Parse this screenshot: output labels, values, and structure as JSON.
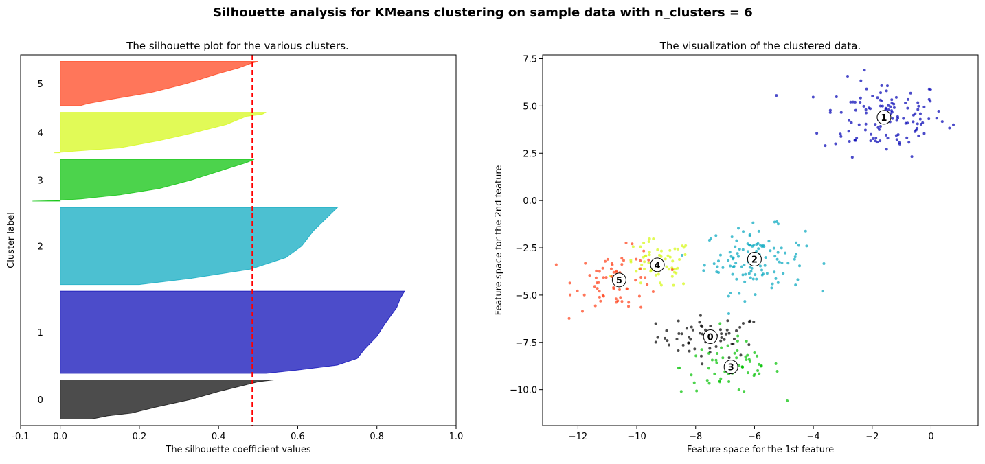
{
  "figure": {
    "suptitle": "Silhouette analysis for KMeans clustering on sample data with n_clusters = 6"
  },
  "chart_data": [
    {
      "type": "area",
      "subtype": "silhouette",
      "title": "The silhouette plot for the various clusters.",
      "xlabel": "The silhouette coefficient values",
      "ylabel": "Cluster label",
      "xlim": [
        -0.1,
        1.0
      ],
      "xticks": [
        "-0.1",
        "0.0",
        "0.2",
        "0.4",
        "0.6",
        "0.8",
        "1.0"
      ],
      "yticks": "none",
      "grid": false,
      "average_silhouette": 0.485,
      "average_line_color": "#ff0000",
      "clusters": [
        {
          "label": "0",
          "size": 60,
          "color": "#000000",
          "profile": [
            [
              0,
              0.54
            ],
            [
              0.05,
              0.5
            ],
            [
              0.15,
              0.46
            ],
            [
              0.3,
              0.4
            ],
            [
              0.5,
              0.33
            ],
            [
              0.7,
              0.24
            ],
            [
              0.85,
              0.18
            ],
            [
              0.92,
              0.12
            ],
            [
              1,
              0.08
            ]
          ]
        },
        {
          "label": "1",
          "size": 126,
          "color": "#0000b4",
          "profile": [
            [
              0,
              0.87
            ],
            [
              0.08,
              0.86
            ],
            [
              0.2,
              0.85
            ],
            [
              0.4,
              0.82
            ],
            [
              0.55,
              0.8
            ],
            [
              0.7,
              0.77
            ],
            [
              0.82,
              0.75
            ],
            [
              0.9,
              0.7
            ],
            [
              0.96,
              0.6
            ],
            [
              1,
              0.52
            ]
          ]
        },
        {
          "label": "2",
          "size": 118,
          "color": "#00a5bd",
          "profile": [
            [
              0,
              0.7
            ],
            [
              0.05,
              0.69
            ],
            [
              0.15,
              0.67
            ],
            [
              0.3,
              0.64
            ],
            [
              0.5,
              0.61
            ],
            [
              0.65,
              0.57
            ],
            [
              0.8,
              0.48
            ],
            [
              0.92,
              0.33
            ],
            [
              1,
              0.2
            ]
          ]
        },
        {
          "label": "3",
          "size": 64,
          "color": "#00c000",
          "profile": [
            [
              0,
              0.49
            ],
            [
              0.08,
              0.47
            ],
            [
              0.2,
              0.43
            ],
            [
              0.35,
              0.38
            ],
            [
              0.5,
              0.33
            ],
            [
              0.7,
              0.25
            ],
            [
              0.85,
              0.15
            ],
            [
              0.95,
              0.05
            ],
            [
              0.99,
              -0.02
            ],
            [
              1,
              -0.07
            ]
          ]
        },
        {
          "label": "4",
          "size": 62,
          "color": "#d4f810",
          "profile": [
            [
              0,
              0.52
            ],
            [
              0.05,
              0.51
            ],
            [
              0.1,
              0.47
            ],
            [
              0.3,
              0.42
            ],
            [
              0.5,
              0.34
            ],
            [
              0.7,
              0.25
            ],
            [
              0.88,
              0.15
            ],
            [
              0.95,
              0.05
            ],
            [
              1,
              -0.015
            ]
          ]
        },
        {
          "label": "5",
          "size": 68,
          "color": "#ff3c14",
          "profile": [
            [
              0,
              0.5
            ],
            [
              0.05,
              0.48
            ],
            [
              0.15,
              0.45
            ],
            [
              0.3,
              0.39
            ],
            [
              0.5,
              0.32
            ],
            [
              0.7,
              0.23
            ],
            [
              0.85,
              0.13
            ],
            [
              0.95,
              0.07
            ],
            [
              1,
              0.05
            ]
          ]
        }
      ]
    },
    {
      "type": "scatter",
      "title": "The visualization of the clustered data.",
      "xlabel": "Feature space for the 1st feature",
      "ylabel": "Feature space for the 2nd feature",
      "xlim": [
        -13.2,
        1.6
      ],
      "ylim": [
        -11.9,
        7.7
      ],
      "xticks": [
        "−12",
        "−10",
        "−8",
        "−6",
        "−4",
        "−2",
        "0"
      ],
      "yticks": [
        "7.5",
        "5.0",
        "2.5",
        "0.0",
        "−2.5",
        "−5.0",
        "−7.5",
        "−10.0"
      ],
      "grid": false,
      "point_alpha": 0.7,
      "clusters": [
        {
          "label": "0",
          "color": "#000000",
          "center": [
            -7.5,
            -7.2
          ],
          "spread": [
            0.9,
            0.55
          ],
          "n": 60
        },
        {
          "label": "1",
          "color": "#0000b4",
          "center": [
            -1.6,
            4.4
          ],
          "spread": [
            1.05,
            1.0
          ],
          "n": 126
        },
        {
          "label": "2",
          "color": "#00a5bd",
          "center": [
            -6.0,
            -3.1
          ],
          "spread": [
            0.85,
            0.85
          ],
          "n": 118
        },
        {
          "label": "3",
          "color": "#00c000",
          "center": [
            -6.8,
            -8.8
          ],
          "spread": [
            0.85,
            0.7
          ],
          "n": 64
        },
        {
          "label": "4",
          "color": "#d4f810",
          "center": [
            -9.3,
            -3.4
          ],
          "spread": [
            0.6,
            0.65
          ],
          "n": 62
        },
        {
          "label": "5",
          "color": "#ff3c14",
          "center": [
            -10.6,
            -4.2
          ],
          "spread": [
            0.75,
            0.8
          ],
          "n": 68
        }
      ]
    }
  ]
}
